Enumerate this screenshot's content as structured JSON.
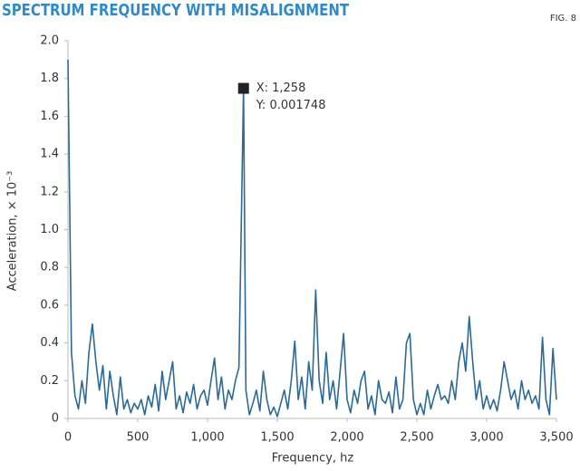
{
  "chart_data": {
    "type": "line",
    "title": "SPECTRUM FREQUENCY WITH MISALIGNMENT",
    "figure_label": "FIG. 8",
    "x_label": "Frequency, hz",
    "y_label": "Acceleration, × 10⁻³",
    "color": "#2b6a98",
    "x": [
      0,
      25,
      50,
      75,
      100,
      125,
      150,
      175,
      200,
      225,
      250,
      275,
      300,
      325,
      350,
      375,
      400,
      425,
      450,
      475,
      500,
      525,
      550,
      575,
      600,
      625,
      650,
      675,
      700,
      725,
      750,
      775,
      800,
      825,
      850,
      875,
      900,
      925,
      950,
      975,
      1000,
      1025,
      1050,
      1075,
      1100,
      1125,
      1150,
      1175,
      1200,
      1225,
      1258,
      1275,
      1300,
      1325,
      1350,
      1375,
      1400,
      1425,
      1450,
      1475,
      1500,
      1525,
      1550,
      1575,
      1600,
      1625,
      1650,
      1675,
      1700,
      1725,
      1750,
      1775,
      1800,
      1825,
      1850,
      1875,
      1900,
      1925,
      1950,
      1975,
      2000,
      2025,
      2050,
      2075,
      2100,
      2125,
      2150,
      2175,
      2200,
      2225,
      2250,
      2275,
      2300,
      2325,
      2350,
      2375,
      2400,
      2425,
      2450,
      2475,
      2500,
      2525,
      2550,
      2575,
      2600,
      2625,
      2650,
      2675,
      2700,
      2725,
      2750,
      2775,
      2800,
      2825,
      2850,
      2875,
      2900,
      2925,
      2950,
      2975,
      3000,
      3025,
      3050,
      3075,
      3100,
      3125,
      3150,
      3175,
      3200,
      3225,
      3250,
      3275,
      3300,
      3325,
      3350,
      3375,
      3400,
      3425,
      3450,
      3475,
      3500
    ],
    "values": [
      1.9,
      0.35,
      0.12,
      0.05,
      0.2,
      0.08,
      0.35,
      0.5,
      0.3,
      0.15,
      0.28,
      0.05,
      0.25,
      0.12,
      0.02,
      0.22,
      0.05,
      0.1,
      0.03,
      0.08,
      0.05,
      0.1,
      0.02,
      0.12,
      0.06,
      0.18,
      0.04,
      0.25,
      0.1,
      0.2,
      0.3,
      0.05,
      0.12,
      0.03,
      0.14,
      0.08,
      0.18,
      0.05,
      0.12,
      0.15,
      0.07,
      0.2,
      0.32,
      0.1,
      0.22,
      0.05,
      0.15,
      0.1,
      0.2,
      0.27,
      1.748,
      0.15,
      0.02,
      0.08,
      0.15,
      0.04,
      0.25,
      0.1,
      0.02,
      0.06,
      0.01,
      0.08,
      0.15,
      0.05,
      0.2,
      0.41,
      0.1,
      0.22,
      0.05,
      0.3,
      0.15,
      0.68,
      0.2,
      0.08,
      0.35,
      0.1,
      0.2,
      0.05,
      0.25,
      0.45,
      0.1,
      0.03,
      0.15,
      0.08,
      0.2,
      0.25,
      0.05,
      0.12,
      0.02,
      0.2,
      0.1,
      0.08,
      0.14,
      0.03,
      0.22,
      0.05,
      0.1,
      0.4,
      0.45,
      0.1,
      0.02,
      0.08,
      0.02,
      0.15,
      0.05,
      0.12,
      0.18,
      0.1,
      0.12,
      0.08,
      0.2,
      0.1,
      0.3,
      0.4,
      0.25,
      0.54,
      0.3,
      0.1,
      0.2,
      0.05,
      0.12,
      0.05,
      0.1,
      0.04,
      0.15,
      0.3,
      0.2,
      0.1,
      0.15,
      0.05,
      0.2,
      0.1,
      0.15,
      0.08,
      0.12,
      0.05,
      0.43,
      0.1,
      0.02,
      0.37,
      0.1
    ],
    "annotation": {
      "x": 1258,
      "y": 1.748,
      "x_text": "X: 1,258",
      "y_text": "Y: 0.001748"
    },
    "xlim": [
      0,
      3500
    ],
    "xticks": [
      0,
      500,
      {
        "value": 1000,
        "label": "1,000"
      },
      {
        "value": 1500,
        "label": "1,500"
      },
      {
        "value": 2000,
        "label": "2,000"
      },
      {
        "value": 2500,
        "label": "2,500"
      },
      {
        "value": 3000,
        "label": "3,000"
      },
      {
        "value": 3500,
        "label": "3,500"
      }
    ],
    "ylim": [
      0,
      2
    ],
    "yticks": [
      0,
      0.2,
      0.4,
      0.6,
      0.8,
      {
        "value": 1,
        "label": "1.0"
      },
      1.2,
      1.4,
      1.6,
      1.8,
      {
        "value": 2,
        "label": "2.0"
      }
    ],
    "grid": false
  }
}
